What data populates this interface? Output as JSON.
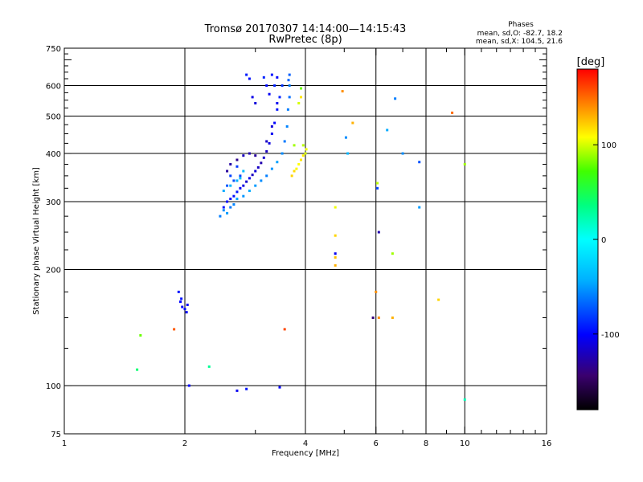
{
  "chart_data": {
    "type": "scatter",
    "title": "Tromsø 20170307 14:14:00—14:15:43",
    "subtitle": "RwPretec (8p)",
    "xlabel": "Frequency [MHz]",
    "ylabel": "Stationary phase Virtual Height [km]",
    "x_scale": "log",
    "y_scale": "log",
    "xlim": [
      1,
      16
    ],
    "ylim": [
      75,
      750
    ],
    "grid": true,
    "x_ticks": [
      1,
      2,
      4,
      6,
      8,
      10,
      16
    ],
    "x_tick_labels": [
      "1",
      "2",
      "4",
      "6",
      "8",
      "10",
      "16"
    ],
    "y_ticks": [
      75,
      100,
      200,
      300,
      400,
      500,
      600,
      750
    ],
    "y_tick_labels": [
      "75",
      "100",
      "200",
      "300",
      "400",
      "500",
      "600",
      "750"
    ],
    "y_grid": [
      100,
      200,
      300,
      400,
      500,
      600
    ],
    "info": {
      "heading": "Phases",
      "line1": "mean, sd,O: -82.7, 18.2",
      "line2": "mean, sd,X: 104.5, 21.6"
    },
    "colorbar": {
      "label": "[deg]",
      "range": [
        -180,
        180
      ],
      "ticks": [
        100,
        0,
        -100
      ],
      "tick_labels": [
        "100",
        "0",
        "-100"
      ]
    },
    "series": [
      {
        "trace": "O",
        "points": [
          [
            2.5,
            290,
            -95
          ],
          [
            2.55,
            300,
            -98
          ],
          [
            2.6,
            305,
            -100
          ],
          [
            2.65,
            310,
            -97
          ],
          [
            2.7,
            318,
            -94
          ],
          [
            2.75,
            325,
            -102
          ],
          [
            2.8,
            330,
            -110
          ],
          [
            2.85,
            338,
            -115
          ],
          [
            2.9,
            345,
            -108
          ],
          [
            2.95,
            352,
            -120
          ],
          [
            3.0,
            360,
            -112
          ],
          [
            3.05,
            368,
            -118
          ],
          [
            3.1,
            378,
            -125
          ],
          [
            3.15,
            390,
            -116
          ],
          [
            3.2,
            405,
            -120
          ],
          [
            3.25,
            425,
            -110
          ],
          [
            3.3,
            450,
            -105
          ],
          [
            3.35,
            480,
            -100
          ],
          [
            3.4,
            520,
            -95
          ],
          [
            3.45,
            560,
            -90
          ],
          [
            3.5,
            600,
            -85
          ],
          [
            2.55,
            360,
            -130
          ],
          [
            2.6,
            375,
            -128
          ],
          [
            2.7,
            385,
            -135
          ],
          [
            2.8,
            395,
            -120
          ],
          [
            2.9,
            400,
            -125
          ],
          [
            3.0,
            395,
            -130
          ],
          [
            3.2,
            430,
            -118
          ],
          [
            3.3,
            470,
            -112
          ],
          [
            3.4,
            540,
            -105
          ],
          [
            3.35,
            600,
            -90
          ],
          [
            3.3,
            640,
            -95
          ],
          [
            3.4,
            630,
            -100
          ],
          [
            2.85,
            640,
            -92
          ],
          [
            2.9,
            625,
            -96
          ],
          [
            3.15,
            630,
            -90
          ],
          [
            3.2,
            600,
            -98
          ],
          [
            3.25,
            570,
            -104
          ],
          [
            2.95,
            560,
            -108
          ],
          [
            3.0,
            540,
            -112
          ],
          [
            2.6,
            350,
            -80
          ],
          [
            2.65,
            340,
            -75
          ],
          [
            2.75,
            350,
            -78
          ],
          [
            2.7,
            370,
            -82
          ],
          [
            2.55,
            330,
            -72
          ],
          [
            1.93,
            175,
            -95
          ],
          [
            1.95,
            165,
            -100
          ],
          [
            1.97,
            160,
            -102
          ],
          [
            2.0,
            158,
            -98
          ],
          [
            2.03,
            162,
            -104
          ],
          [
            1.96,
            168,
            -96
          ],
          [
            2.02,
            155,
            -100
          ],
          [
            2.05,
            100,
            -100
          ],
          [
            2.7,
            97,
            -105
          ],
          [
            2.85,
            98,
            -95
          ],
          [
            3.45,
            99,
            -100
          ]
        ]
      },
      {
        "trace": "X",
        "points": [
          [
            2.45,
            275,
            -60
          ],
          [
            2.5,
            285,
            -55
          ],
          [
            2.55,
            280,
            -50
          ],
          [
            2.6,
            290,
            -62
          ],
          [
            2.65,
            295,
            -58
          ],
          [
            2.7,
            305,
            -48
          ],
          [
            2.8,
            310,
            -52
          ],
          [
            2.9,
            320,
            -45
          ],
          [
            3.0,
            330,
            -50
          ],
          [
            3.1,
            340,
            -55
          ],
          [
            3.2,
            350,
            -60
          ],
          [
            3.3,
            365,
            -52
          ],
          [
            3.4,
            380,
            -48
          ],
          [
            3.5,
            400,
            -55
          ],
          [
            3.55,
            430,
            -62
          ],
          [
            3.6,
            470,
            -58
          ],
          [
            3.62,
            520,
            -60
          ],
          [
            3.65,
            560,
            -65
          ],
          [
            3.65,
            600,
            -62
          ],
          [
            3.63,
            620,
            -68
          ],
          [
            3.65,
            640,
            -70
          ],
          [
            2.5,
            320,
            -45
          ],
          [
            2.6,
            330,
            -40
          ],
          [
            2.7,
            340,
            -42
          ],
          [
            2.8,
            360,
            -38
          ],
          [
            2.75,
            345,
            -35
          ],
          [
            3.7,
            350,
            120
          ],
          [
            3.75,
            360,
            118
          ],
          [
            3.8,
            365,
            110
          ],
          [
            3.85,
            375,
            108
          ],
          [
            3.9,
            385,
            115
          ],
          [
            3.95,
            395,
            112
          ],
          [
            4.0,
            400,
            100
          ],
          [
            4.02,
            410,
            105
          ],
          [
            3.95,
            420,
            95
          ],
          [
            3.75,
            420,
            90
          ],
          [
            3.85,
            540,
            100
          ],
          [
            3.9,
            560,
            115
          ],
          [
            3.9,
            590,
            80
          ],
          [
            4.95,
            580,
            140
          ],
          [
            5.25,
            480,
            130
          ],
          [
            4.75,
            290,
            105
          ],
          [
            4.75,
            245,
            120
          ],
          [
            4.75,
            205,
            130
          ],
          [
            4.75,
            215,
            125
          ],
          [
            6.05,
            335,
            95
          ],
          [
            6.6,
            220,
            90
          ],
          [
            6.0,
            175,
            140
          ],
          [
            6.6,
            150,
            130
          ],
          [
            8.6,
            167,
            120
          ],
          [
            3.55,
            140,
            160
          ],
          [
            1.55,
            135,
            80
          ],
          [
            1.88,
            140,
            155
          ],
          [
            9.3,
            510,
            150
          ],
          [
            10.0,
            375,
            90
          ],
          [
            1.52,
            110,
            40
          ],
          [
            2.3,
            112,
            30
          ],
          [
            10.0,
            92,
            20
          ]
        ]
      },
      {
        "trace": "other",
        "points": [
          [
            6.7,
            555,
            -60
          ],
          [
            6.4,
            460,
            -45
          ],
          [
            5.05,
            440,
            -55
          ],
          [
            5.1,
            400,
            -40
          ],
          [
            7.0,
            400,
            -55
          ],
          [
            7.7,
            380,
            -75
          ],
          [
            7.7,
            290,
            -50
          ],
          [
            6.1,
            250,
            -125
          ],
          [
            6.05,
            325,
            -80
          ],
          [
            4.75,
            220,
            -105
          ],
          [
            6.1,
            150,
            140
          ],
          [
            5.9,
            150,
            -140
          ]
        ]
      }
    ]
  }
}
